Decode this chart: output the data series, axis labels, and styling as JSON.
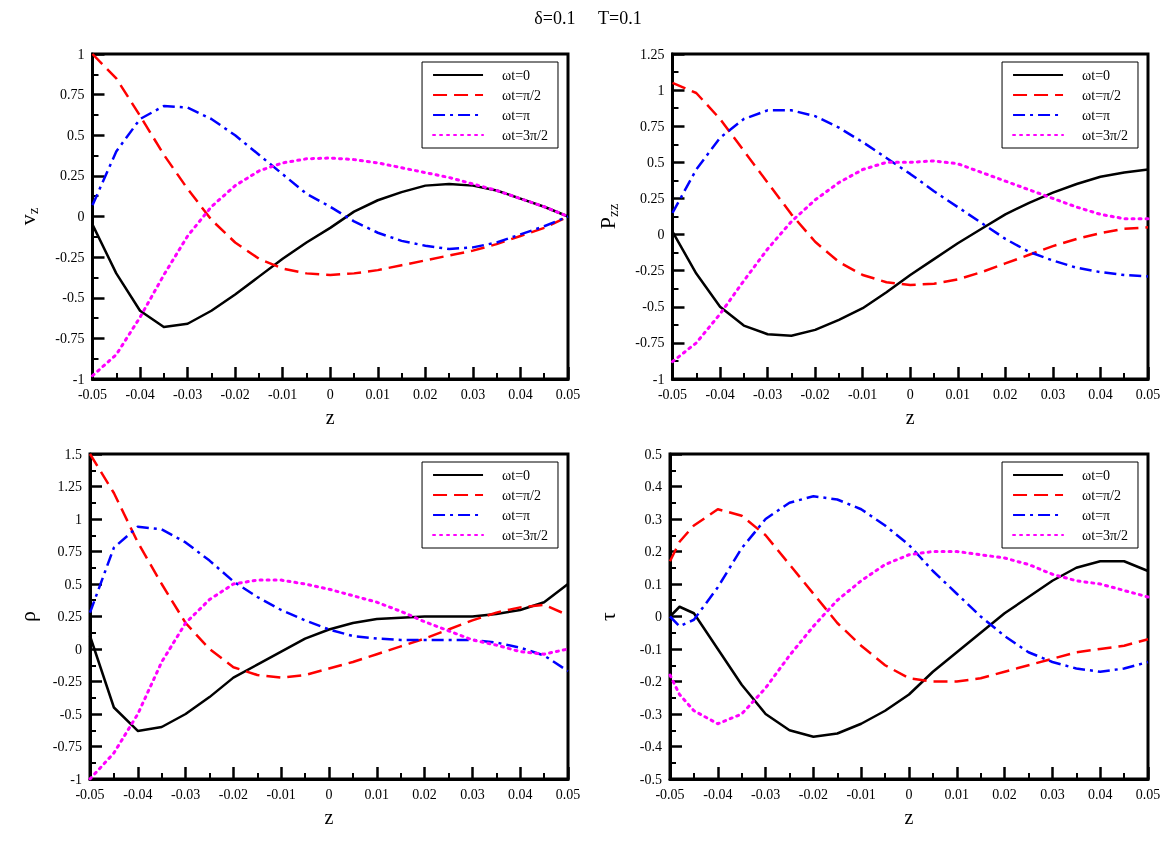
{
  "chart_data": [
    {
      "type": "line",
      "title": "δ=0.1     T=0.1",
      "xlabel": "z",
      "ylabel": "v$_{z}$",
      "legend": "top right",
      "grid": false,
      "marker": "none",
      "x": [
        -0.05,
        -0.045,
        -0.04,
        -0.035,
        -0.03,
        -0.025,
        -0.02,
        -0.015,
        -0.01,
        -0.005,
        0,
        0.005,
        0.01,
        0.015,
        0.02,
        0.025,
        0.03,
        0.035,
        0.04,
        0.045,
        0.05
      ],
      "xlim": [
        -0.05,
        0.05
      ],
      "xticks": [
        -0.05,
        -0.04,
        -0.03,
        -0.02,
        -0.01,
        0,
        0.01,
        0.02,
        0.03,
        0.04,
        0.05
      ],
      "ylim": [
        -1,
        1
      ],
      "yticks": [
        -1,
        -0.75,
        -0.5,
        -0.25,
        0,
        0.25,
        0.5,
        0.75,
        1
      ],
      "series": [
        {
          "name": "ωt=0",
          "color": "#000000",
          "line_style": "solid",
          "values": [
            -0.05,
            -0.35,
            -0.58,
            -0.68,
            -0.66,
            -0.58,
            -0.48,
            -0.37,
            -0.26,
            -0.16,
            -0.07,
            0.03,
            0.1,
            0.15,
            0.19,
            0.2,
            0.19,
            0.16,
            0.11,
            0.06,
            0
          ]
        },
        {
          "name": "ωt=π/2",
          "color": "#ff0000",
          "line_style": "dashed",
          "values": [
            1,
            0.85,
            0.62,
            0.38,
            0.17,
            -0.02,
            -0.16,
            -0.26,
            -0.32,
            -0.35,
            -0.36,
            -0.35,
            -0.33,
            -0.3,
            -0.27,
            -0.24,
            -0.21,
            -0.17,
            -0.12,
            -0.07,
            0
          ]
        },
        {
          "name": "ωt=π",
          "color": "#0000ff",
          "line_style": "dashdot",
          "values": [
            0.07,
            0.4,
            0.6,
            0.68,
            0.67,
            0.6,
            0.5,
            0.38,
            0.26,
            0.14,
            0.06,
            -0.03,
            -0.1,
            -0.15,
            -0.18,
            -0.2,
            -0.19,
            -0.16,
            -0.11,
            -0.06,
            0
          ]
        },
        {
          "name": "ωt=3π/2",
          "color": "#ff00ff",
          "line_style": "dotted",
          "values": [
            -0.98,
            -0.85,
            -0.62,
            -0.36,
            -0.12,
            0.06,
            0.19,
            0.28,
            0.33,
            0.355,
            0.36,
            0.35,
            0.33,
            0.3,
            0.27,
            0.24,
            0.2,
            0.16,
            0.11,
            0.06,
            0
          ]
        }
      ]
    },
    {
      "type": "line",
      "xlabel": "z",
      "ylabel": "P$_{zz}$",
      "legend": "top right",
      "grid": false,
      "marker": "none",
      "x": [
        -0.05,
        -0.045,
        -0.04,
        -0.035,
        -0.03,
        -0.025,
        -0.02,
        -0.015,
        -0.01,
        -0.005,
        0,
        0.005,
        0.01,
        0.015,
        0.02,
        0.025,
        0.03,
        0.035,
        0.04,
        0.045,
        0.05
      ],
      "xlim": [
        -0.05,
        0.05
      ],
      "xticks": [
        -0.05,
        -0.04,
        -0.03,
        -0.02,
        -0.01,
        0,
        0.01,
        0.02,
        0.03,
        0.04,
        0.05
      ],
      "ylim": [
        -1,
        1.25
      ],
      "yticks": [
        -1,
        -0.75,
        -0.5,
        -0.25,
        0,
        0.25,
        0.5,
        0.75,
        1,
        1.25
      ],
      "series": [
        {
          "name": "ωt=0",
          "color": "#000000",
          "line_style": "solid",
          "values": [
            0.02,
            -0.27,
            -0.5,
            -0.63,
            -0.69,
            -0.7,
            -0.66,
            -0.59,
            -0.51,
            -0.4,
            -0.28,
            -0.17,
            -0.06,
            0.04,
            0.14,
            0.22,
            0.29,
            0.35,
            0.4,
            0.43,
            0.45
          ]
        },
        {
          "name": "ωt=π/2",
          "color": "#ff0000",
          "line_style": "dashed",
          "values": [
            1.05,
            0.98,
            0.8,
            0.58,
            0.36,
            0.14,
            -0.05,
            -0.19,
            -0.28,
            -0.33,
            -0.35,
            -0.34,
            -0.31,
            -0.26,
            -0.2,
            -0.14,
            -0.08,
            -0.03,
            0.01,
            0.04,
            0.05
          ]
        },
        {
          "name": "ωt=π",
          "color": "#0000ff",
          "line_style": "dashdot",
          "values": [
            0.15,
            0.45,
            0.67,
            0.8,
            0.86,
            0.86,
            0.82,
            0.74,
            0.64,
            0.53,
            0.42,
            0.3,
            0.19,
            0.08,
            -0.03,
            -0.12,
            -0.18,
            -0.23,
            -0.26,
            -0.28,
            -0.29
          ]
        },
        {
          "name": "ωt=3π/2",
          "color": "#ff00ff",
          "line_style": "dotted",
          "values": [
            -0.88,
            -0.75,
            -0.55,
            -0.32,
            -0.1,
            0.09,
            0.24,
            0.36,
            0.45,
            0.5,
            0.5,
            0.51,
            0.49,
            0.43,
            0.37,
            0.31,
            0.25,
            0.19,
            0.14,
            0.11,
            0.11
          ]
        }
      ]
    },
    {
      "type": "line",
      "xlabel": "z",
      "ylabel": "ρ",
      "legend": "top right",
      "grid": false,
      "marker": "none",
      "x": [
        -0.05,
        -0.045,
        -0.04,
        -0.035,
        -0.03,
        -0.025,
        -0.02,
        -0.015,
        -0.01,
        -0.005,
        0,
        0.005,
        0.01,
        0.015,
        0.02,
        0.025,
        0.03,
        0.035,
        0.04,
        0.045,
        0.05
      ],
      "xlim": [
        -0.05,
        0.05
      ],
      "xticks": [
        -0.05,
        -0.04,
        -0.03,
        -0.02,
        -0.01,
        0,
        0.01,
        0.02,
        0.03,
        0.04,
        0.05
      ],
      "ylim": [
        -1,
        1.5
      ],
      "yticks": [
        -1,
        -0.75,
        -0.5,
        -0.25,
        0,
        0.25,
        0.5,
        0.75,
        1,
        1.25,
        1.5
      ],
      "series": [
        {
          "name": "ωt=0",
          "color": "#000000",
          "line_style": "solid",
          "values": [
            0.1,
            -0.45,
            -0.63,
            -0.6,
            -0.5,
            -0.37,
            -0.22,
            -0.12,
            -0.02,
            0.08,
            0.15,
            0.2,
            0.23,
            0.24,
            0.25,
            0.25,
            0.25,
            0.27,
            0.3,
            0.36,
            0.5
          ]
        },
        {
          "name": "ωt=π/2",
          "color": "#ff0000",
          "line_style": "dashed",
          "values": [
            1.5,
            1.2,
            0.82,
            0.5,
            0.2,
            0,
            -0.14,
            -0.2,
            -0.22,
            -0.2,
            -0.15,
            -0.1,
            -0.04,
            0.02,
            0.08,
            0.15,
            0.22,
            0.28,
            0.32,
            0.34,
            0.26
          ]
        },
        {
          "name": "ωt=π",
          "color": "#0000ff",
          "line_style": "dashdot",
          "values": [
            0.28,
            0.78,
            0.94,
            0.92,
            0.82,
            0.68,
            0.52,
            0.4,
            0.3,
            0.22,
            0.15,
            0.1,
            0.08,
            0.07,
            0.07,
            0.07,
            0.07,
            0.05,
            0.01,
            -0.05,
            -0.17
          ]
        },
        {
          "name": "ωt=3π/2",
          "color": "#ff00ff",
          "line_style": "dotted",
          "values": [
            -1,
            -0.8,
            -0.5,
            -0.1,
            0.2,
            0.38,
            0.5,
            0.53,
            0.53,
            0.5,
            0.46,
            0.41,
            0.36,
            0.29,
            0.21,
            0.14,
            0.07,
            0.03,
            -0.02,
            -0.04,
            0
          ]
        }
      ]
    },
    {
      "type": "line",
      "xlabel": "z",
      "ylabel": "τ",
      "legend": "top right",
      "grid": false,
      "marker": "none",
      "x": [
        -0.05,
        -0.048,
        -0.045,
        -0.04,
        -0.035,
        -0.03,
        -0.025,
        -0.02,
        -0.015,
        -0.01,
        -0.005,
        0,
        0.005,
        0.01,
        0.015,
        0.02,
        0.025,
        0.03,
        0.035,
        0.04,
        0.045,
        0.05
      ],
      "xlim": [
        -0.05,
        0.05
      ],
      "xticks": [
        -0.05,
        -0.04,
        -0.03,
        -0.02,
        -0.01,
        0,
        0.01,
        0.02,
        0.03,
        0.04,
        0.05
      ],
      "ylim": [
        -0.5,
        0.5
      ],
      "yticks": [
        -0.5,
        -0.4,
        -0.3,
        -0.2,
        -0.1,
        0,
        0.1,
        0.2,
        0.3,
        0.4,
        0.5
      ],
      "series": [
        {
          "name": "ωt=0",
          "color": "#000000",
          "line_style": "solid",
          "values": [
            0,
            0.03,
            0.01,
            -0.1,
            -0.21,
            -0.3,
            -0.35,
            -0.37,
            -0.36,
            -0.33,
            -0.29,
            -0.24,
            -0.17,
            -0.11,
            -0.05,
            0.01,
            0.06,
            0.11,
            0.15,
            0.17,
            0.17,
            0.14
          ]
        },
        {
          "name": "ωt=π/2",
          "color": "#ff0000",
          "line_style": "dashed",
          "values": [
            0.17,
            0.23,
            0.28,
            0.33,
            0.31,
            0.25,
            0.16,
            0.07,
            -0.02,
            -0.09,
            -0.15,
            -0.19,
            -0.2,
            -0.2,
            -0.19,
            -0.17,
            -0.15,
            -0.13,
            -0.11,
            -0.1,
            -0.09,
            -0.07
          ]
        },
        {
          "name": "ωt=π",
          "color": "#0000ff",
          "line_style": "dashdot",
          "values": [
            0,
            -0.03,
            -0.01,
            0.09,
            0.21,
            0.3,
            0.35,
            0.37,
            0.36,
            0.33,
            0.28,
            0.22,
            0.14,
            0.07,
            0,
            -0.06,
            -0.11,
            -0.14,
            -0.16,
            -0.17,
            -0.16,
            -0.14
          ]
        },
        {
          "name": "ωt=3π/2",
          "color": "#ff00ff",
          "line_style": "dotted",
          "values": [
            -0.18,
            -0.24,
            -0.29,
            -0.33,
            -0.3,
            -0.22,
            -0.12,
            -0.03,
            0.05,
            0.11,
            0.16,
            0.19,
            0.2,
            0.2,
            0.19,
            0.18,
            0.16,
            0.13,
            0.11,
            0.1,
            0.08,
            0.06
          ]
        }
      ]
    }
  ]
}
